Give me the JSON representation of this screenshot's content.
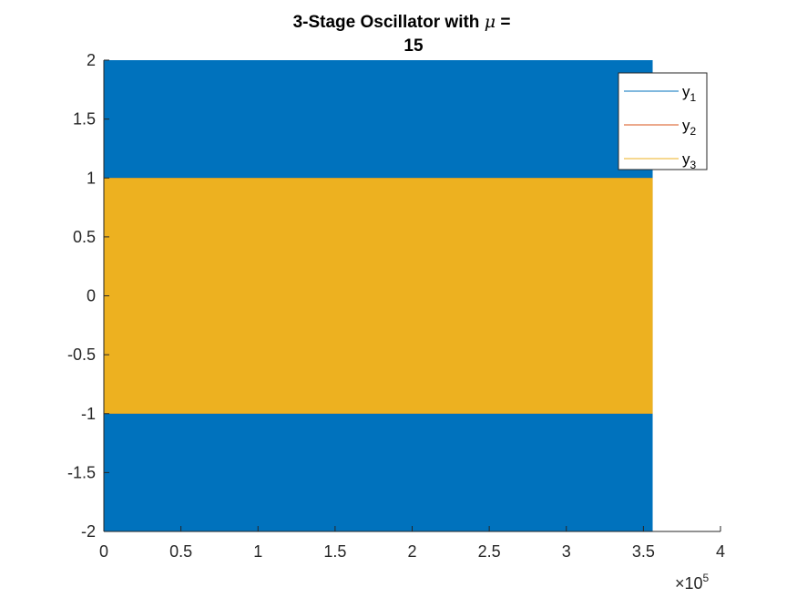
{
  "chart_data": {
    "type": "line",
    "title_prefix": "3-Stage Oscillator with ",
    "title_symbol": "μ",
    "title_suffix": " =",
    "title_line2": "15",
    "xlabel": "",
    "ylabel": "",
    "xlim": [
      0,
      400000
    ],
    "ylim": [
      -2,
      2
    ],
    "x_ticks": [
      0,
      50000,
      100000,
      150000,
      200000,
      250000,
      300000,
      350000,
      400000
    ],
    "x_tick_labels": [
      "0",
      "0.5",
      "1",
      "1.5",
      "2",
      "2.5",
      "3",
      "3.5",
      "4"
    ],
    "y_ticks": [
      -2,
      -1.5,
      -1,
      -0.5,
      0,
      0.5,
      1,
      1.5,
      2
    ],
    "y_tick_labels": [
      "-2",
      "-1.5",
      "-1",
      "-0.5",
      "0",
      "0.5",
      "1",
      "1.5",
      "2"
    ],
    "x_exponent_label": "×10",
    "x_exponent_power": "5",
    "legend_position": "top-right",
    "series": [
      {
        "name": "y",
        "subscript": "1",
        "color": "#0072BD",
        "x_range": [
          0,
          356000
        ],
        "y_range": [
          -2,
          2
        ]
      },
      {
        "name": "y",
        "subscript": "2",
        "color": "#D95319",
        "x_range": [
          0,
          356000
        ],
        "y_range": [
          -1,
          1
        ]
      },
      {
        "name": "y",
        "subscript": "3",
        "color": "#EDB120",
        "x_range": [
          0,
          356000
        ],
        "y_range": [
          -1,
          1
        ]
      }
    ]
  }
}
